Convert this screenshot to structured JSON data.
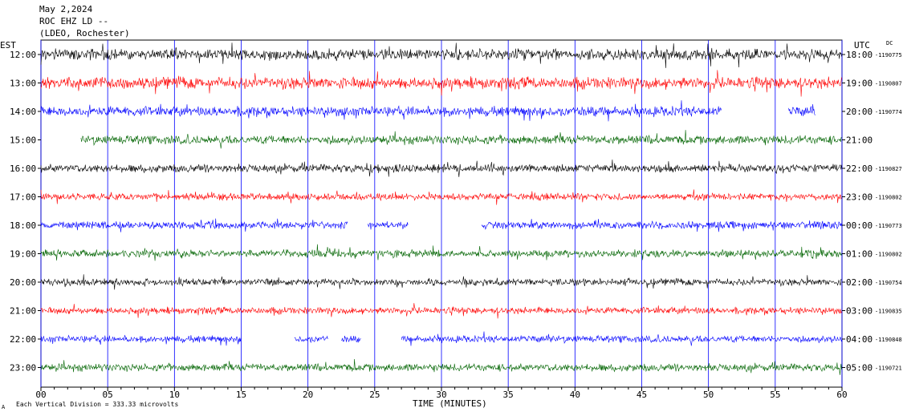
{
  "header": {
    "date": "May 2,2024",
    "station": "ROC EHZ LD --",
    "network": "(LDEO, Rochester)"
  },
  "left_axis_label": "EST",
  "right_axis_label": "UTC",
  "dc_label": "DC",
  "footer": {
    "note": "Each Vertical Division = 333.33 microvolts",
    "corner_mark": "A"
  },
  "colors": {
    "black": "#000000",
    "red": "#ff0000",
    "blue": "#0000ff",
    "green": "#006400",
    "grid": "#0000ff"
  },
  "chart_data": {
    "type": "line",
    "title": "",
    "xlabel": "TIME (MINUTES)",
    "ylabel": "",
    "xlim": [
      0,
      60
    ],
    "x_ticks": [
      "00",
      "05",
      "10",
      "15",
      "20",
      "25",
      "30",
      "35",
      "40",
      "45",
      "50",
      "55",
      "60"
    ],
    "grid": true,
    "rows": [
      {
        "est": "12:00",
        "utc": "18:00",
        "dc": "-1190775",
        "color": "black",
        "amp": 0.9,
        "segments": [
          [
            0,
            60
          ]
        ]
      },
      {
        "est": "13:00",
        "utc": "19:00",
        "dc": "-1190807",
        "color": "red",
        "amp": 0.95,
        "segments": [
          [
            0,
            60
          ]
        ]
      },
      {
        "est": "14:00",
        "utc": "20:00",
        "dc": "-1190774",
        "color": "blue",
        "amp": 0.8,
        "segments": [
          [
            0,
            51
          ],
          [
            56,
            58
          ]
        ]
      },
      {
        "est": "15:00",
        "utc": "21:00",
        "dc": "",
        "color": "green",
        "amp": 0.7,
        "segments": [
          [
            3,
            60
          ]
        ]
      },
      {
        "est": "16:00",
        "utc": "22:00",
        "dc": "-1190827",
        "color": "black",
        "amp": 0.65,
        "segments": [
          [
            0,
            60
          ]
        ]
      },
      {
        "est": "17:00",
        "utc": "23:00",
        "dc": "-1190802",
        "color": "red",
        "amp": 0.55,
        "segments": [
          [
            0,
            60
          ]
        ]
      },
      {
        "est": "18:00",
        "utc": "00:00",
        "dc": "-1190773",
        "color": "blue",
        "amp": 0.6,
        "segments": [
          [
            0,
            23
          ],
          [
            24.5,
            27.5
          ],
          [
            33,
            60
          ]
        ]
      },
      {
        "est": "19:00",
        "utc": "01:00",
        "dc": "-1190802",
        "color": "green",
        "amp": 0.6,
        "segments": [
          [
            0,
            60
          ]
        ]
      },
      {
        "est": "20:00",
        "utc": "02:00",
        "dc": "-1190754",
        "color": "black",
        "amp": 0.55,
        "segments": [
          [
            0,
            60
          ]
        ]
      },
      {
        "est": "21:00",
        "utc": "03:00",
        "dc": "-1190835",
        "color": "red",
        "amp": 0.55,
        "segments": [
          [
            0,
            60
          ]
        ]
      },
      {
        "est": "22:00",
        "utc": "04:00",
        "dc": "-1190848",
        "color": "blue",
        "amp": 0.55,
        "segments": [
          [
            0,
            15
          ],
          [
            19,
            21.5
          ],
          [
            22.5,
            24
          ],
          [
            27,
            60
          ]
        ]
      },
      {
        "est": "23:00",
        "utc": "05:00",
        "dc": "-1190721",
        "color": "green",
        "amp": 0.6,
        "segments": [
          [
            0,
            60
          ]
        ]
      }
    ]
  }
}
